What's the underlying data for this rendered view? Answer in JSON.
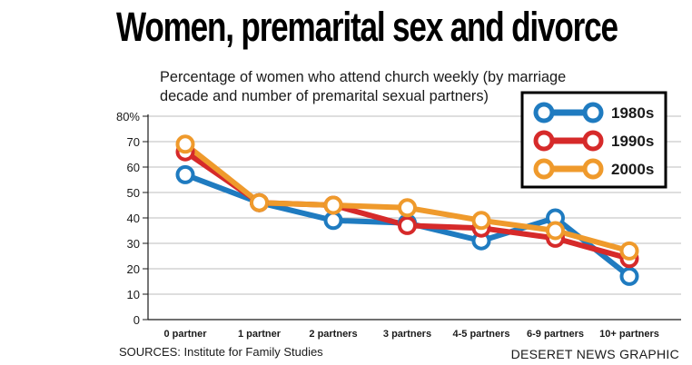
{
  "header": {
    "title": "Women, premarital sex and divorce",
    "subtitle": "Percentage of women who attend church weekly (by marriage decade and number of premarital sexual partners)"
  },
  "footer": {
    "source": "SOURCES: Institute for Family Studies",
    "credit": "DESERET NEWS GRAPHIC"
  },
  "chart_data": {
    "type": "line",
    "title": "Women, premarital sex and divorce",
    "subtitle": "Percentage of women who attend church weekly (by marriage decade and number of premarital sexual partners)",
    "categories": [
      "0 partner",
      "1 partner",
      "2 partners",
      "3 partners",
      "4-5 partners",
      "6-9 partners",
      "10+ partners"
    ],
    "y_ticks": [
      "0",
      "10",
      "20",
      "30",
      "40",
      "50",
      "60",
      "70",
      "80%"
    ],
    "ylim": [
      0,
      80
    ],
    "grid": true,
    "legend_position": "top-right",
    "series": [
      {
        "name": "1980s",
        "color": "#1f7bc0",
        "values": [
          57,
          46,
          39,
          38,
          31,
          40,
          17
        ]
      },
      {
        "name": "1990s",
        "color": "#d62a2a",
        "values": [
          66,
          46,
          45,
          37,
          36,
          32,
          24
        ]
      },
      {
        "name": "2000s",
        "color": "#ef9a2c",
        "values": [
          69,
          46,
          45,
          44,
          39,
          35,
          27
        ]
      }
    ]
  }
}
